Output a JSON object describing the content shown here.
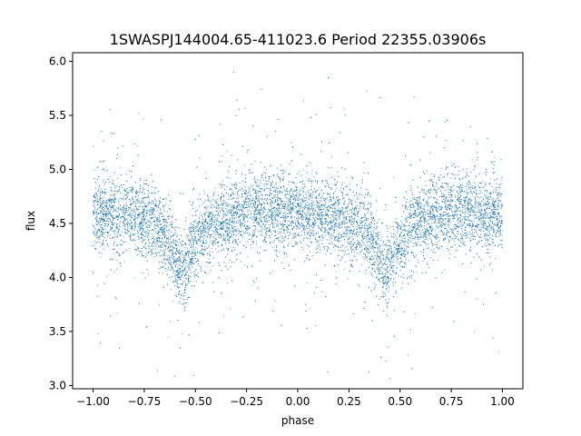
{
  "chart_data": {
    "type": "scatter",
    "title": "1SWASPJ144004.65-411023.6 Period 22355.03906s",
    "xlabel": "phase",
    "ylabel": "flux",
    "xlim": [
      -1.1,
      1.1
    ],
    "ylim": [
      2.97,
      6.08
    ],
    "xticks": [
      -1.0,
      -0.75,
      -0.5,
      -0.25,
      0.0,
      0.25,
      0.5,
      0.75,
      1.0
    ],
    "xtick_labels": [
      "−1.00",
      "−0.75",
      "−0.50",
      "−0.25",
      "0.00",
      "0.25",
      "0.50",
      "0.75",
      "1.00"
    ],
    "yticks": [
      3.0,
      3.5,
      4.0,
      4.5,
      5.0,
      5.5,
      6.0
    ],
    "ytick_labels": [
      "3.0",
      "3.5",
      "4.0",
      "4.5",
      "5.0",
      "5.5",
      "6.0"
    ],
    "grid": false,
    "marker_color": "#1f77b4",
    "series": [
      {
        "description_of_trend": "phase-folded light curve",
        "phase_range": [
          -1.0,
          1.0
        ],
        "baseline_flux": 4.6,
        "scatter_sigma": 0.17,
        "minima": [
          {
            "phase": -0.57,
            "flux": 4.05
          },
          {
            "phase": 0.43,
            "flux": 4.05
          }
        ],
        "points": [
          [
            -1.0,
            4.55
          ],
          [
            -0.95,
            4.6
          ],
          [
            -0.9,
            4.6
          ],
          [
            -0.85,
            4.58
          ],
          [
            -0.8,
            4.57
          ],
          [
            -0.75,
            4.55
          ],
          [
            -0.7,
            4.5
          ],
          [
            -0.65,
            4.4
          ],
          [
            -0.6,
            4.2
          ],
          [
            -0.57,
            4.05
          ],
          [
            -0.55,
            4.1
          ],
          [
            -0.5,
            4.3
          ],
          [
            -0.45,
            4.45
          ],
          [
            -0.4,
            4.5
          ],
          [
            -0.35,
            4.55
          ],
          [
            -0.3,
            4.57
          ],
          [
            -0.25,
            4.6
          ],
          [
            -0.2,
            4.62
          ],
          [
            -0.15,
            4.63
          ],
          [
            -0.1,
            4.62
          ],
          [
            -0.05,
            4.6
          ],
          [
            0.0,
            4.58
          ],
          [
            0.05,
            4.57
          ],
          [
            0.1,
            4.55
          ],
          [
            0.15,
            4.55
          ],
          [
            0.2,
            4.53
          ],
          [
            0.25,
            4.52
          ],
          [
            0.3,
            4.5
          ],
          [
            0.35,
            4.4
          ],
          [
            0.4,
            4.15
          ],
          [
            0.43,
            4.05
          ],
          [
            0.45,
            4.1
          ],
          [
            0.5,
            4.3
          ],
          [
            0.55,
            4.42
          ],
          [
            0.6,
            4.5
          ],
          [
            0.65,
            4.55
          ],
          [
            0.7,
            4.57
          ],
          [
            0.75,
            4.6
          ],
          [
            0.8,
            4.62
          ],
          [
            0.85,
            4.62
          ],
          [
            0.9,
            4.6
          ],
          [
            0.95,
            4.6
          ],
          [
            1.0,
            4.58
          ]
        ]
      }
    ]
  }
}
